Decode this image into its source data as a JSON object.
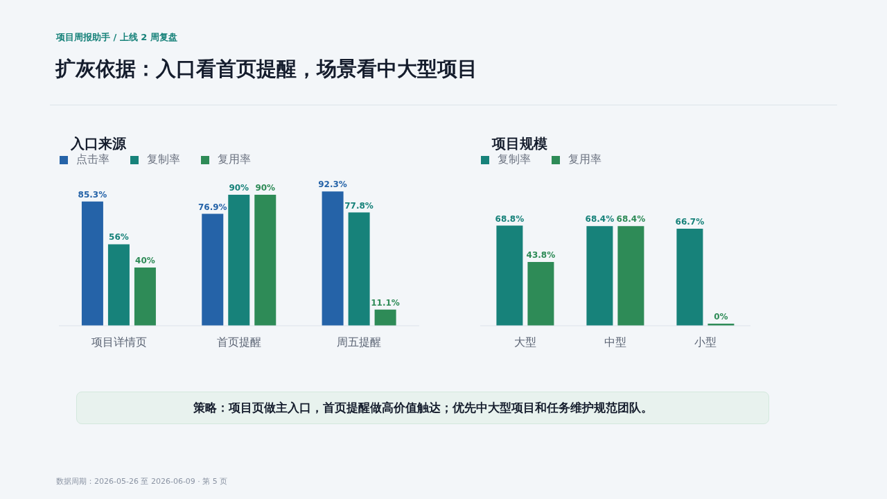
{
  "chart_data": [
    {
      "type": "bar",
      "title": "入口来源",
      "categories": [
        "项目详情页",
        "首页提醒",
        "周五提醒"
      ],
      "series": [
        {
          "name": "点击率",
          "color": "#2563a8",
          "values": [
            85.3,
            76.9,
            92.3
          ],
          "value_labels": [
            "85.3%",
            "76.9%",
            "92.3%"
          ]
        },
        {
          "name": "复制率",
          "color": "#17827a",
          "values": [
            56,
            90,
            77.8
          ],
          "value_labels": [
            "56%",
            "90%",
            "77.8%"
          ]
        },
        {
          "name": "复用率",
          "color": "#2e8b57",
          "values": [
            40,
            90,
            11.1
          ],
          "value_labels": [
            "40%",
            "90%",
            "11.1%"
          ]
        }
      ],
      "legend": "top left",
      "grid": false,
      "annotations": [
        "项目周报助手 / 上线 2 周复盘",
        "扩灰依据：入口看首页提醒，场景看中大型项目",
        "策略：项目页做主入口，首页提醒做高价值触达；优先中大型项目和任务维护规范团队。",
        "数据周期：2026-05-26 至 2026-06-09 · 第 5 页"
      ]
    },
    {
      "type": "bar",
      "title": "项目规模",
      "categories": [
        "大型",
        "中型",
        "小型"
      ],
      "series": [
        {
          "name": "复制率",
          "color": "#17827a",
          "values": [
            68.8,
            68.4,
            66.7
          ],
          "value_labels": [
            "68.8%",
            "68.4%",
            "66.7%"
          ]
        },
        {
          "name": "复用率",
          "color": "#2e8b57",
          "values": [
            43.8,
            68.4,
            0
          ],
          "value_labels": [
            "43.8%",
            "68.4%",
            "0%"
          ]
        }
      ],
      "legend": "top left",
      "grid": false
    }
  ]
}
